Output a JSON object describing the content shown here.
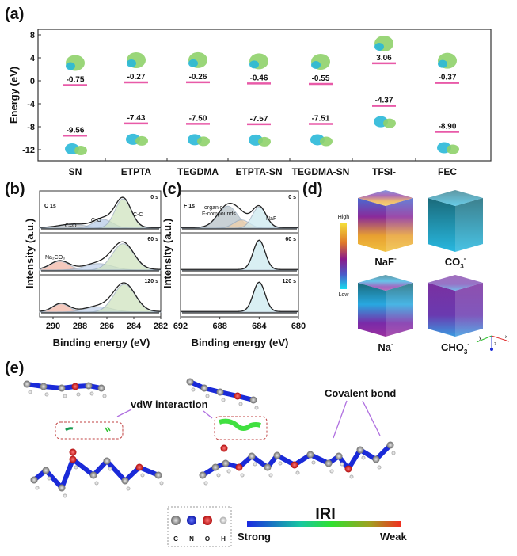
{
  "panel_labels": {
    "a": "(a)",
    "b": "(b)",
    "c": "(c)",
    "d": "(d)",
    "e": "(e)"
  },
  "chart_data": [
    {
      "type": "energy-level",
      "ylabel": "Energy (eV)",
      "ylim": [
        -14,
        9
      ],
      "yticks": [
        8,
        4,
        0,
        -4,
        -8,
        -12
      ],
      "categories": [
        "SN",
        "ETPTA",
        "TEGDMA",
        "ETPTA-SN",
        "TEGDMA-SN",
        "TFSI-",
        "FEC"
      ],
      "series": [
        {
          "values": [
            -0.75,
            -0.27,
            -0.26,
            -0.46,
            -0.55,
            3.06,
            -0.37
          ],
          "labels": [
            "-0.75",
            "-0.27",
            "-0.26",
            "-0.46",
            "-0.55",
            "3.06",
            "-0.37"
          ]
        },
        {
          "values": [
            -9.56,
            -7.43,
            -7.5,
            -7.57,
            -7.51,
            -4.37,
            -8.9
          ],
          "labels": [
            "-9.56",
            "-7.43",
            "-7.50",
            "-7.57",
            "-7.51",
            "-4.37",
            "-8.90"
          ]
        }
      ],
      "level_color": "#e85aa8",
      "orbital_colors": [
        "#8fd16a",
        "#2ab8d8"
      ]
    },
    {
      "type": "line",
      "title": "C 1s",
      "xlabel": "Binding energy (eV)",
      "ylabel": "Intensity (a.u.)",
      "xlim": [
        291,
        282
      ],
      "xticks": [
        290,
        288,
        286,
        284,
        282
      ],
      "panels": [
        {
          "time": "0 s",
          "components": [
            {
              "name": "C=O",
              "center": 288.5,
              "height": 0.12,
              "width": 1.0,
              "color": "#c8c8c8"
            },
            {
              "name": "C-O",
              "center": 286.3,
              "height": 0.3,
              "width": 0.7,
              "color": "#b8cbe8"
            },
            {
              "name": "C-C",
              "center": 284.8,
              "height": 1.0,
              "width": 0.6,
              "color": "#cfe3c0"
            }
          ]
        },
        {
          "time": "60 s",
          "components": [
            {
              "name": "Na2CO3",
              "center": 289.5,
              "height": 0.3,
              "width": 0.7,
              "color": "#f2b8a8"
            },
            {
              "name": "C-O",
              "center": 286.6,
              "height": 0.22,
              "width": 1.0,
              "color": "#c4d4ec"
            },
            {
              "name": "C-C",
              "center": 284.8,
              "height": 0.9,
              "width": 0.8,
              "color": "#cfe3c0"
            }
          ]
        },
        {
          "time": "120 s",
          "components": [
            {
              "name": "Na2CO3",
              "center": 289.4,
              "height": 0.28,
              "width": 0.6,
              "color": "#f2b8a8"
            },
            {
              "name": "C-O",
              "center": 286.6,
              "height": 0.18,
              "width": 1.0,
              "color": "#c4d4ec"
            },
            {
              "name": "C-C",
              "center": 284.7,
              "height": 0.95,
              "width": 0.8,
              "color": "#cfe3c0"
            }
          ]
        }
      ],
      "annotations": {
        "co_double": "C=O",
        "co_single": "C-O",
        "cc": "C-C",
        "na2co3": "Na₂CO₃"
      }
    },
    {
      "type": "line",
      "title": "F 1s",
      "xlabel": "Binding energy (eV)",
      "ylabel": "Intensity (a.u.)",
      "xlim": [
        692,
        680
      ],
      "xticks": [
        692,
        688,
        684,
        680
      ],
      "panels": [
        {
          "time": "0 s",
          "components": [
            {
              "name": "organic F-compounds",
              "center": 687.2,
              "height": 0.75,
              "width": 1.0,
              "color": "#b7c2c8"
            },
            {
              "name": "",
              "center": 685.8,
              "height": 0.28,
              "width": 0.8,
              "color": "#f0d0a8"
            },
            {
              "name": "NaF",
              "center": 684.0,
              "height": 0.72,
              "width": 0.7,
              "color": "#cdeaf0"
            }
          ]
        },
        {
          "time": "60 s",
          "components": [
            {
              "name": "NaF",
              "center": 684.0,
              "height": 1.0,
              "width": 0.6,
              "color": "#cdeaf0"
            }
          ]
        },
        {
          "time": "120 s",
          "components": [
            {
              "name": "NaF",
              "center": 684.0,
              "height": 1.0,
              "width": 0.6,
              "color": "#cdeaf0"
            }
          ]
        }
      ],
      "annotations": {
        "organic_1": "organic",
        "organic_2": "F-compounds",
        "naf": "NaF"
      }
    }
  ],
  "panel_d": {
    "colorbar": {
      "high": "High",
      "low": "Low",
      "colors": [
        "#f5e23a",
        "#e07a2a",
        "#8a1a8a",
        "#4a5ac8",
        "#18e0f0"
      ]
    },
    "cubes": [
      {
        "label": "NaF",
        "sup": "-"
      },
      {
        "label": "CO",
        "sub": "3",
        "sup": "-"
      },
      {
        "label": "Na",
        "sup": "-"
      },
      {
        "label": "CHO",
        "sub": "3",
        "sup": "-"
      }
    ],
    "axes": {
      "x": "x",
      "y": "y",
      "z": "z"
    }
  },
  "panel_e": {
    "vdw_label": "vdW interaction",
    "covalent_label": "Covalent bond",
    "legend_atoms": [
      {
        "label": "C",
        "color": "#9a9a9a"
      },
      {
        "label": "N",
        "color": "#1a2ad8"
      },
      {
        "label": "O",
        "color": "#e01010"
      },
      {
        "label": "H",
        "color": "#e8e8e8"
      }
    ],
    "iri": {
      "title": "IRI",
      "strong": "Strong",
      "weak": "Weak",
      "colors": [
        "#1a2ae0",
        "#18c8a0",
        "#30e030",
        "#a0a020",
        "#f03020"
      ]
    }
  }
}
